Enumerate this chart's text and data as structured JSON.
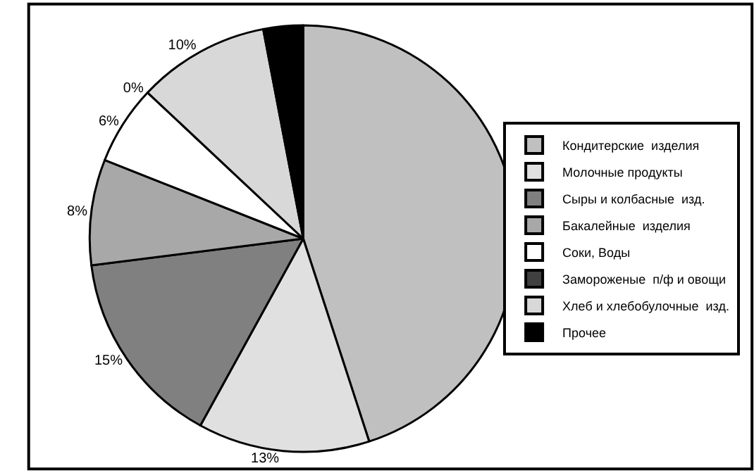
{
  "chart_data": {
    "type": "pie",
    "categories": [
      "Кондитерские  изделия",
      "Молочные продукты",
      "Сыры и колбасные  изд.",
      "Бакалейные  изделия",
      "Соки, Воды",
      "Замороженые  п/ф и овощи",
      "Хлеб и хлебобулочные  изд.",
      "Прочее"
    ],
    "values": [
      45,
      13,
      15,
      8,
      6,
      0,
      10,
      3
    ],
    "value_labels": [
      null,
      "13%",
      "15%",
      "8%",
      "6%",
      "0%",
      "10%",
      null
    ],
    "colors": [
      "#c0c0c0",
      "#e0e0e0",
      "#808080",
      "#a8a8a8",
      "#ffffff",
      "#404040",
      "#d8d8d8",
      "#000000"
    ],
    "legend": "right"
  }
}
